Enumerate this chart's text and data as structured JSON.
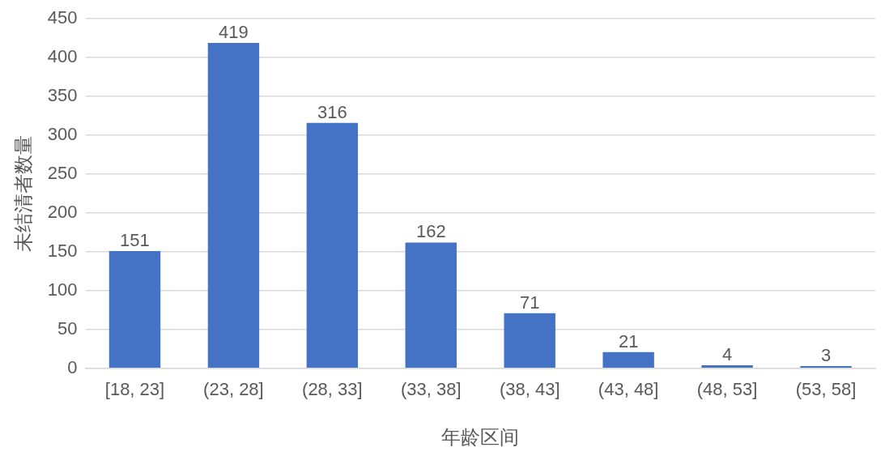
{
  "chart_data": {
    "type": "bar",
    "xlabel": "年龄区间",
    "ylabel": "未结清者数量",
    "categories": [
      "[18, 23]",
      "(23, 28]",
      "(28, 33]",
      "(33, 38]",
      "(38, 43]",
      "(43, 48]",
      "(48, 53]",
      "(53, 58]"
    ],
    "values": [
      151,
      419,
      316,
      162,
      71,
      21,
      4,
      3
    ],
    "color": "#4472c4",
    "ylim": [
      0,
      450
    ],
    "yticks": [
      0,
      50,
      100,
      150,
      200,
      250,
      300,
      350,
      400,
      450
    ],
    "grid": "y",
    "data_labels": true
  }
}
